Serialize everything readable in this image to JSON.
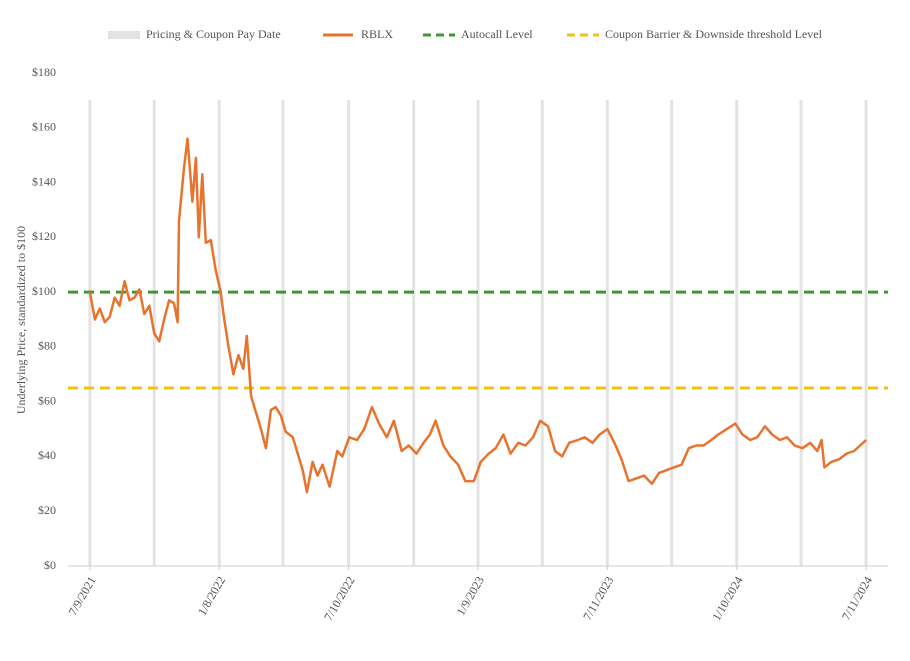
{
  "chart_data": {
    "type": "line",
    "ylabel": "Underlying Price, standardized to $100",
    "xlim": [
      "2021-06-08",
      "2024-08-11"
    ],
    "xticks": [
      {
        "value": "2021-07-09",
        "label": "7/9/2021"
      },
      {
        "value": "2022-01-08",
        "label": "1/8/2022"
      },
      {
        "value": "2022-07-10",
        "label": "7/10/2022"
      },
      {
        "value": "2023-01-09",
        "label": "1/9/2023"
      },
      {
        "value": "2023-07-11",
        "label": "7/11/2023"
      },
      {
        "value": "2024-01-10",
        "label": "1/10/2024"
      },
      {
        "value": "2024-07-11",
        "label": "7/11/2024"
      }
    ],
    "ylim": [
      0,
      180
    ],
    "yticks": [
      {
        "value": 0,
        "label": "$0"
      },
      {
        "value": 20,
        "label": "$20"
      },
      {
        "value": 40,
        "label": "$40"
      },
      {
        "value": 60,
        "label": "$60"
      },
      {
        "value": 80,
        "label": "$80"
      },
      {
        "value": 100,
        "label": "$100"
      },
      {
        "value": 120,
        "label": "$120"
      },
      {
        "value": 140,
        "label": "$140"
      },
      {
        "value": 160,
        "label": "$160"
      },
      {
        "value": 180,
        "label": "$180"
      }
    ],
    "legend": "top",
    "series": [
      {
        "name": "Pricing & Coupon Pay Date",
        "color": "#e3e3e3",
        "style": "vline",
        "x": [
          "2021-07-09",
          "2021-10-08",
          "2022-01-08",
          "2022-04-08",
          "2022-07-10",
          "2022-10-10",
          "2023-01-09",
          "2023-04-10",
          "2023-07-11",
          "2023-10-10",
          "2024-01-10",
          "2024-04-10",
          "2024-07-11"
        ]
      },
      {
        "name": "RBLX",
        "color": "#e8732e",
        "style": "line",
        "x": [
          "2021-07-09",
          "2021-07-16",
          "2021-07-23",
          "2021-07-30",
          "2021-08-06",
          "2021-08-13",
          "2021-08-20",
          "2021-08-27",
          "2021-09-03",
          "2021-09-10",
          "2021-09-17",
          "2021-09-24",
          "2021-10-01",
          "2021-10-08",
          "2021-10-15",
          "2021-10-22",
          "2021-10-29",
          "2021-11-05",
          "2021-11-10",
          "2021-11-12",
          "2021-11-19",
          "2021-11-24",
          "2021-12-01",
          "2021-12-06",
          "2021-12-10",
          "2021-12-15",
          "2021-12-20",
          "2021-12-27",
          "2022-01-03",
          "2022-01-10",
          "2022-01-14",
          "2022-01-21",
          "2022-01-28",
          "2022-02-04",
          "2022-02-11",
          "2022-02-16",
          "2022-02-22",
          "2022-03-01",
          "2022-03-08",
          "2022-03-15",
          "2022-03-22",
          "2022-03-29",
          "2022-04-05",
          "2022-04-12",
          "2022-04-22",
          "2022-05-06",
          "2022-05-12",
          "2022-05-20",
          "2022-05-27",
          "2022-06-03",
          "2022-06-13",
          "2022-06-24",
          "2022-07-01",
          "2022-07-11",
          "2022-07-22",
          "2022-08-01",
          "2022-08-12",
          "2022-08-22",
          "2022-09-02",
          "2022-09-12",
          "2022-09-23",
          "2022-10-03",
          "2022-10-14",
          "2022-10-24",
          "2022-11-02",
          "2022-11-10",
          "2022-11-21",
          "2022-12-01",
          "2022-12-12",
          "2022-12-22",
          "2023-01-03",
          "2023-01-13",
          "2023-01-24",
          "2023-02-03",
          "2023-02-14",
          "2023-02-24",
          "2023-03-07",
          "2023-03-17",
          "2023-03-28",
          "2023-04-07",
          "2023-04-18",
          "2023-04-28",
          "2023-05-08",
          "2023-05-18",
          "2023-05-30",
          "2023-06-09",
          "2023-06-20",
          "2023-06-30",
          "2023-07-11",
          "2023-07-21",
          "2023-07-31",
          "2023-08-10",
          "2023-08-21",
          "2023-09-01",
          "2023-09-12",
          "2023-09-22",
          "2023-10-03",
          "2023-10-13",
          "2023-10-24",
          "2023-11-03",
          "2023-11-14",
          "2023-11-24",
          "2023-12-05",
          "2023-12-15",
          "2023-12-27",
          "2024-01-08",
          "2024-01-18",
          "2024-01-29",
          "2024-02-08",
          "2024-02-19",
          "2024-02-29",
          "2024-03-11",
          "2024-03-21",
          "2024-04-01",
          "2024-04-12",
          "2024-04-23",
          "2024-05-03",
          "2024-05-09",
          "2024-05-13",
          "2024-05-23",
          "2024-06-03",
          "2024-06-13",
          "2024-06-24",
          "2024-07-11"
        ],
        "values": [
          100,
          90,
          94,
          89,
          91,
          98,
          95,
          104,
          97,
          98,
          101,
          92,
          95,
          85,
          82,
          90,
          97,
          96,
          89,
          126,
          145,
          156,
          133,
          149,
          120,
          143,
          118,
          119,
          108,
          100,
          92,
          80,
          70,
          77,
          72,
          84,
          62,
          56,
          50,
          43,
          57,
          58,
          55,
          49,
          47,
          35,
          27,
          38,
          33,
          37,
          29,
          42,
          40,
          47,
          46,
          50,
          58,
          52,
          47,
          53,
          42,
          44,
          41,
          45,
          48,
          53,
          44,
          40,
          37,
          31,
          31,
          38,
          41,
          43,
          48,
          41,
          45,
          44,
          47,
          53,
          51,
          42,
          40,
          45,
          46,
          47,
          45,
          48,
          50,
          45,
          39,
          31,
          32,
          33,
          30,
          34,
          35,
          36,
          37,
          43,
          44,
          44,
          46,
          48,
          50,
          52,
          48,
          46,
          47,
          51,
          48,
          46,
          47,
          44,
          43,
          45,
          42,
          46,
          36,
          38,
          39,
          41,
          42,
          46
        ]
      },
      {
        "name": "Autocall Level",
        "color": "#3a9b2c",
        "style": "hline",
        "values": [
          100
        ]
      },
      {
        "name": "Coupon Barrier & Downside threshold Level",
        "color": "#f5bf14",
        "style": "hline",
        "values": [
          65
        ]
      }
    ]
  }
}
